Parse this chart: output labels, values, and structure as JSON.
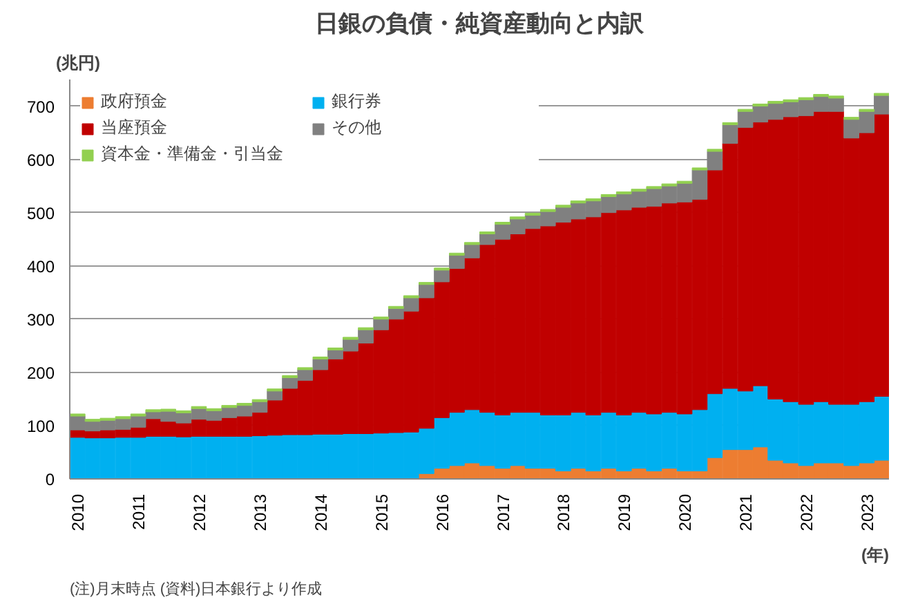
{
  "chart_data": {
    "type": "bar",
    "stacked": true,
    "title": "日銀の負債・純資産動向と内訳",
    "ylabel": "(兆円)",
    "xlabel": "(年)",
    "annotations": [
      "(注)月末時点",
      "(資料)日本銀行より作成"
    ],
    "x": [
      "2010-01",
      "2010-04",
      "2010-07",
      "2010-10",
      "2011-01",
      "2011-04",
      "2011-07",
      "2011-10",
      "2012-01",
      "2012-04",
      "2012-07",
      "2012-10",
      "2013-01",
      "2013-04",
      "2013-07",
      "2013-10",
      "2014-01",
      "2014-04",
      "2014-07",
      "2014-10",
      "2015-01",
      "2015-04",
      "2015-07",
      "2015-10",
      "2016-01",
      "2016-04",
      "2016-07",
      "2016-10",
      "2017-01",
      "2017-04",
      "2017-07",
      "2017-10",
      "2018-01",
      "2018-04",
      "2018-07",
      "2018-10",
      "2019-01",
      "2019-04",
      "2019-07",
      "2019-10",
      "2020-01",
      "2020-04",
      "2020-07",
      "2020-10",
      "2021-01",
      "2021-04",
      "2021-07",
      "2021-10",
      "2022-01",
      "2022-04",
      "2022-07",
      "2022-10",
      "2023-01",
      "2023-04"
    ],
    "series": [
      {
        "name": "政府預金",
        "color": "#ed7d31",
        "values": [
          1,
          1,
          1,
          1,
          1,
          1,
          1,
          1,
          1,
          1,
          1,
          1,
          1,
          1,
          1,
          1,
          1,
          1,
          1,
          1,
          1,
          1,
          1,
          10,
          20,
          25,
          30,
          25,
          20,
          25,
          20,
          20,
          15,
          20,
          15,
          20,
          15,
          20,
          15,
          20,
          15,
          15,
          40,
          55,
          55,
          60,
          35,
          30,
          25,
          30,
          30,
          25,
          30,
          35
        ]
      },
      {
        "name": "銀行券",
        "color": "#00b0f0",
        "values": [
          77,
          76,
          76,
          77,
          77,
          79,
          79,
          78,
          79,
          79,
          79,
          79,
          80,
          81,
          82,
          82,
          83,
          83,
          84,
          84,
          85,
          86,
          87,
          85,
          95,
          100,
          100,
          100,
          100,
          100,
          105,
          100,
          105,
          105,
          105,
          105,
          105,
          105,
          107,
          105,
          107,
          115,
          120,
          115,
          110,
          115,
          115,
          115,
          115,
          115,
          110,
          115,
          115,
          120
        ]
      },
      {
        "name": "当座預金",
        "color": "#c00000",
        "values": [
          14,
          13,
          15,
          15,
          19,
          33,
          28,
          26,
          32,
          30,
          35,
          38,
          44,
          66,
          87,
          102,
          121,
          141,
          155,
          170,
          194,
          213,
          227,
          245,
          255,
          270,
          285,
          315,
          330,
          335,
          345,
          355,
          362,
          363,
          372,
          375,
          385,
          385,
          390,
          393,
          398,
          395,
          420,
          460,
          495,
          495,
          525,
          535,
          542,
          545,
          550,
          500,
          505,
          530
        ]
      },
      {
        "name": "その他",
        "color": "#808080",
        "values": [
          26,
          18,
          18,
          20,
          21,
          13,
          19,
          19,
          20,
          18,
          19,
          20,
          20,
          17,
          20,
          20,
          20,
          17,
          22,
          25,
          20,
          20,
          25,
          25,
          22,
          25,
          25,
          20,
          28,
          28,
          25,
          27,
          28,
          30,
          30,
          30,
          30,
          30,
          33,
          32,
          35,
          55,
          35,
          35,
          30,
          30,
          30,
          28,
          30,
          28,
          25,
          35,
          40,
          35
        ]
      },
      {
        "name": "資本金・準備金・引当金",
        "color": "#92d050",
        "values": [
          4,
          4,
          4,
          4,
          4,
          4,
          4,
          4,
          4,
          4,
          4,
          4,
          4,
          4,
          4,
          4,
          4,
          4,
          4,
          4,
          4,
          4,
          4,
          4,
          4,
          4,
          4,
          4,
          4,
          4,
          4,
          4,
          4,
          4,
          4,
          4,
          4,
          4,
          4,
          4,
          4,
          4,
          4,
          4,
          4,
          4,
          4,
          4,
          4,
          4,
          4,
          4,
          4,
          4
        ]
      }
    ],
    "xlim": [
      "2009-11-15",
      "2023-05-15"
    ],
    "xticks": [
      {
        "value": "2010-01",
        "label": "2010"
      },
      {
        "value": "2011-01",
        "label": "2011"
      },
      {
        "value": "2012-01",
        "label": "2012"
      },
      {
        "value": "2013-01",
        "label": "2013"
      },
      {
        "value": "2014-01",
        "label": "2014"
      },
      {
        "value": "2015-01",
        "label": "2015"
      },
      {
        "value": "2016-01",
        "label": "2016"
      },
      {
        "value": "2017-01",
        "label": "2017"
      },
      {
        "value": "2018-01",
        "label": "2018"
      },
      {
        "value": "2019-01",
        "label": "2019"
      },
      {
        "value": "2020-01",
        "label": "2020"
      },
      {
        "value": "2021-01",
        "label": "2021"
      },
      {
        "value": "2022-01",
        "label": "2022"
      },
      {
        "value": "2023-01",
        "label": "2023"
      }
    ],
    "ylim": [
      0,
      750
    ],
    "yticks": [
      0,
      100,
      200,
      300,
      400,
      500,
      600,
      700
    ],
    "grid": "y",
    "legend": "top left"
  }
}
